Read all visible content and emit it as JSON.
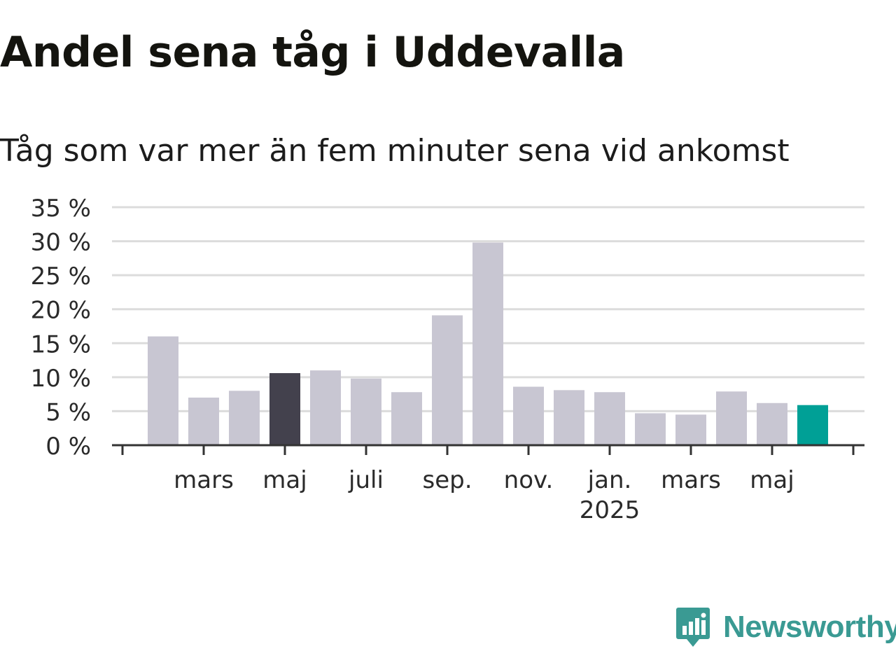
{
  "title": "Andel sena tåg i Uddevalla",
  "subtitle": "Tåg som var mer än fem minuter sena vid ankomst",
  "brand": {
    "name": "Newsworthy"
  },
  "colors": {
    "bar_default": "#c8c6d2",
    "bar_highlight_dark": "#43414d",
    "bar_highlight_latest": "#00a096",
    "gridline": "#dcdcdc",
    "axis": "#333333",
    "brand": "#3a9a93"
  },
  "chart_data": {
    "type": "bar",
    "grid": true,
    "ylim": [
      0,
      35
    ],
    "y_ticks": [
      "0 %",
      "5 %",
      "10 %",
      "15 %",
      "20 %",
      "25 %",
      "30 %",
      "35 %"
    ],
    "x_tick_labels": [
      "mars",
      "maj",
      "juli",
      "sep.",
      "nov.",
      "jan.",
      "mars",
      "maj"
    ],
    "x_year_label": "2025",
    "series": [
      {
        "values": [
          16.0,
          7.0,
          8.0,
          10.6,
          11.0,
          9.8,
          7.8,
          19.1,
          29.8,
          8.6,
          8.1,
          7.8,
          4.7,
          4.5,
          7.9,
          6.2,
          5.9
        ],
        "highlight": {
          "3": "dark",
          "16": "latest"
        }
      }
    ]
  }
}
